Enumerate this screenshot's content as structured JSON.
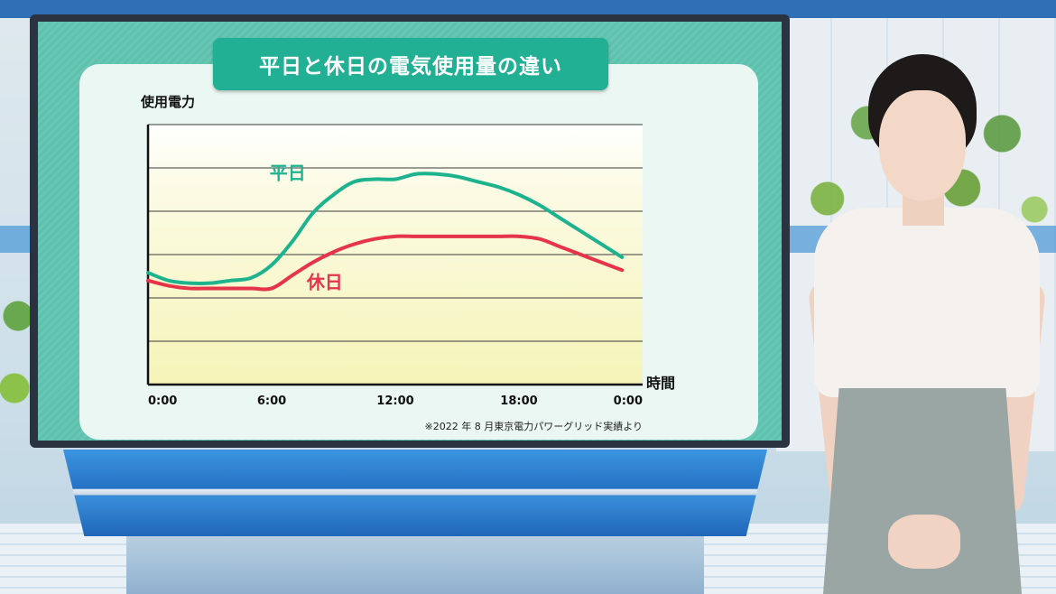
{
  "title": "平日と休日の電気使用量の違い",
  "chart_data": {
    "type": "line",
    "ylabel": "使用電力",
    "xlabel": "時間",
    "x_ticks": [
      "0:00",
      "6:00",
      "12:00",
      "18:00",
      "0:00"
    ],
    "xlim": [
      0,
      24
    ],
    "y_ticks_count": 6,
    "grid": true,
    "source_note": "※2022 年 8 月東京電力パワーグリッド実績より",
    "series": [
      {
        "name": "平日",
        "color": "#1db38e",
        "x": [
          0,
          1,
          2,
          3,
          4,
          5,
          6,
          7,
          8,
          9,
          10,
          11,
          12,
          13,
          14,
          15,
          16,
          17,
          18,
          19,
          20,
          21,
          22,
          23
        ],
        "y": [
          43,
          40,
          39,
          39,
          40,
          41,
          46,
          55,
          66,
          73,
          78,
          79,
          79,
          81,
          81,
          80,
          78,
          76,
          73,
          69,
          64,
          59,
          54,
          49
        ]
      },
      {
        "name": "休日",
        "color": "#e6344a",
        "x": [
          0,
          1,
          2,
          3,
          4,
          5,
          6,
          7,
          8,
          9,
          10,
          11,
          12,
          13,
          14,
          15,
          16,
          17,
          18,
          19,
          20,
          21,
          22,
          23
        ],
        "y": [
          40,
          38,
          37,
          37,
          37,
          37,
          37,
          42,
          47,
          51,
          54,
          56,
          57,
          57,
          57,
          57,
          57,
          57,
          57,
          56,
          53,
          50,
          47,
          44
        ]
      }
    ]
  }
}
